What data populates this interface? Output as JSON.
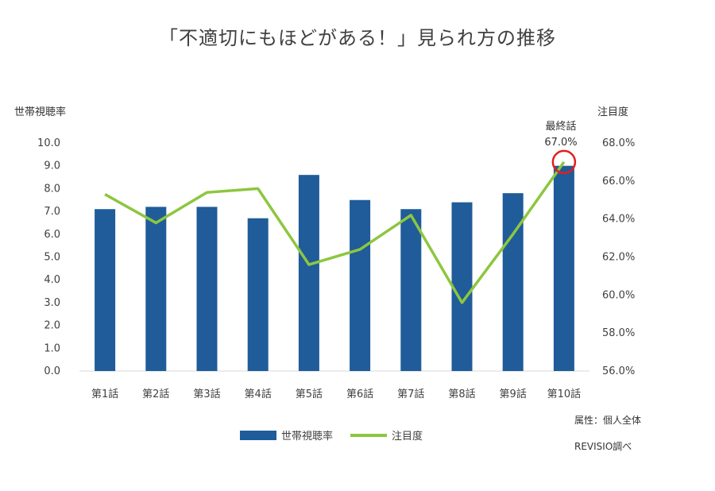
{
  "title": "「不適切にもほどがある！」見られ方の推移",
  "left_axis_title": "世帯視聴率",
  "right_axis_title": "注目度",
  "annotation": {
    "label": "最終話",
    "value": "67.0%"
  },
  "notes": {
    "attribute": "属性：個人全体",
    "source": "REVISIO調べ"
  },
  "colors": {
    "bar": "#1f5c99",
    "line": "#8dc63f",
    "highlight": "#e0201b"
  },
  "chart_data": {
    "type": "bar",
    "categories": [
      "第1話",
      "第2話",
      "第3話",
      "第4話",
      "第5話",
      "第6話",
      "第7話",
      "第8話",
      "第9話",
      "第10話"
    ],
    "series": [
      {
        "name": "世帯視聴率",
        "type": "bar",
        "axis": "left",
        "values": [
          7.1,
          7.2,
          7.2,
          6.7,
          8.6,
          7.5,
          7.1,
          7.4,
          7.8,
          9.0
        ]
      },
      {
        "name": "注目度",
        "type": "line",
        "axis": "right",
        "values": [
          65.3,
          63.8,
          65.4,
          65.6,
          61.6,
          62.4,
          64.2,
          59.6,
          63.2,
          67.0
        ]
      }
    ],
    "y_left": {
      "label": "世帯視聴率",
      "range": [
        0,
        10
      ],
      "ticks": [
        "0.0",
        "1.0",
        "2.0",
        "3.0",
        "4.0",
        "5.0",
        "6.0",
        "7.0",
        "8.0",
        "9.0",
        "10.0"
      ]
    },
    "y_right": {
      "label": "注目度",
      "range": [
        56,
        68
      ],
      "ticks": [
        "56.0%",
        "58.0%",
        "60.0%",
        "62.0%",
        "64.0%",
        "66.0%",
        "68.0%"
      ]
    },
    "grid": false,
    "legend": "bottom"
  }
}
